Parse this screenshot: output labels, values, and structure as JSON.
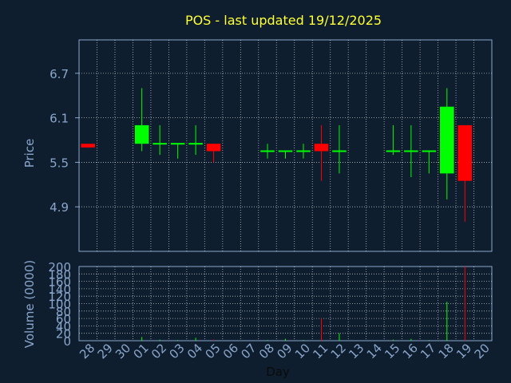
{
  "chart_data": {
    "type": "candlestick",
    "title": "POS - last updated 19/12/2025",
    "xlabel": "Day",
    "price_panel": {
      "ylabel": "Price",
      "ylim": [
        4.3,
        7.15
      ],
      "yticks": [
        4.9,
        5.5,
        6.1,
        6.7
      ],
      "ytick_labels": [
        "4.9",
        "5.5",
        "6.1",
        "6.7"
      ],
      "grid": true
    },
    "volume_panel": {
      "ylabel": "Volume (0000)",
      "ylim": [
        0,
        200
      ],
      "yticks": [
        0,
        20,
        40,
        60,
        80,
        100,
        120,
        140,
        160,
        180,
        200
      ],
      "ytick_labels": [
        "0",
        "20",
        "40",
        "60",
        "80",
        "100",
        "120",
        "140",
        "160",
        "180",
        "200"
      ],
      "grid": true
    },
    "categories": [
      "28",
      "29",
      "30",
      "01",
      "02",
      "03",
      "04",
      "05",
      "06",
      "07",
      "08",
      "09",
      "10",
      "11",
      "12",
      "13",
      "14",
      "15",
      "16",
      "17",
      "18",
      "19",
      "20"
    ],
    "candles": [
      {
        "day": "28",
        "open": 5.75,
        "high": 5.75,
        "low": 5.7,
        "close": 5.7,
        "volume": 0
      },
      {
        "day": "01",
        "open": 5.75,
        "high": 6.5,
        "low": 5.65,
        "close": 6.0,
        "volume": 10
      },
      {
        "day": "02",
        "open": 5.75,
        "high": 6.0,
        "low": 5.6,
        "close": 5.75,
        "volume": 3
      },
      {
        "day": "03",
        "open": 5.75,
        "high": 5.75,
        "low": 5.55,
        "close": 5.75,
        "volume": 2
      },
      {
        "day": "04",
        "open": 5.75,
        "high": 6.0,
        "low": 5.6,
        "close": 5.75,
        "volume": 8
      },
      {
        "day": "05",
        "open": 5.75,
        "high": 5.75,
        "low": 5.5,
        "close": 5.65,
        "volume": 3
      },
      {
        "day": "08",
        "open": 5.65,
        "high": 5.75,
        "low": 5.55,
        "close": 5.65,
        "volume": 2
      },
      {
        "day": "09",
        "open": 5.65,
        "high": 5.65,
        "low": 5.55,
        "close": 5.65,
        "volume": 5
      },
      {
        "day": "10",
        "open": 5.65,
        "high": 5.75,
        "low": 5.55,
        "close": 5.65,
        "volume": 2
      },
      {
        "day": "11",
        "open": 5.75,
        "high": 6.0,
        "low": 5.25,
        "close": 5.65,
        "volume": 60
      },
      {
        "day": "12",
        "open": 5.65,
        "high": 6.0,
        "low": 5.35,
        "close": 5.65,
        "volume": 20
      },
      {
        "day": "15",
        "open": 5.65,
        "high": 6.0,
        "low": 5.6,
        "close": 5.65,
        "volume": 3
      },
      {
        "day": "16",
        "open": 5.65,
        "high": 6.0,
        "low": 5.3,
        "close": 5.65,
        "volume": 5
      },
      {
        "day": "17",
        "open": 5.65,
        "high": 5.65,
        "low": 5.35,
        "close": 5.65,
        "volume": 2
      },
      {
        "day": "18",
        "open": 5.35,
        "high": 6.5,
        "low": 5.0,
        "close": 6.25,
        "volume": 105
      },
      {
        "day": "19",
        "open": 6.0,
        "high": 6.0,
        "low": 4.7,
        "close": 5.25,
        "volume": 200
      }
    ],
    "up_color": "#00ff00",
    "down_color": "#ff0000",
    "flat_color": "#00ff00",
    "text_color": "#8aa6cc",
    "title_color": "#ffff33",
    "grid_color": "#ffffff"
  }
}
